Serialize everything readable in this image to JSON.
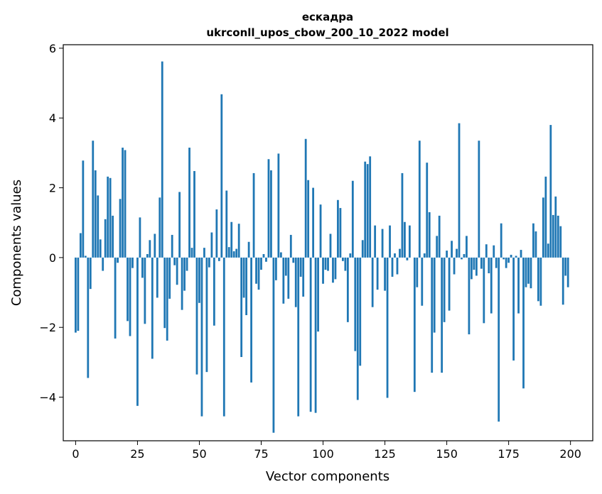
{
  "chart_data": {
    "type": "bar",
    "title_line1": "ескадра",
    "title_line2": "ukrconll_upos_cbow_200_10_2022 model",
    "xlabel": "Vector components",
    "ylabel": "Components values",
    "bar_color": "#1f77b4",
    "xlim": [
      -5,
      209
    ],
    "ylim": [
      -5.25,
      6.1
    ],
    "xticks": [
      0,
      25,
      50,
      75,
      100,
      125,
      150,
      175,
      200
    ],
    "xtick_labels": [
      "0",
      "25",
      "50",
      "75",
      "100",
      "125",
      "150",
      "175",
      "200"
    ],
    "yticks": [
      -4,
      -2,
      0,
      2,
      4,
      6
    ],
    "ytick_labels": [
      "−4",
      "−2",
      "0",
      "2",
      "4",
      "6"
    ],
    "grid": false,
    "x": [
      0,
      1,
      2,
      3,
      4,
      5,
      6,
      7,
      8,
      9,
      10,
      11,
      12,
      13,
      14,
      15,
      16,
      17,
      18,
      19,
      20,
      21,
      22,
      23,
      24,
      25,
      26,
      27,
      28,
      29,
      30,
      31,
      32,
      33,
      34,
      35,
      36,
      37,
      38,
      39,
      40,
      41,
      42,
      43,
      44,
      45,
      46,
      47,
      48,
      49,
      50,
      51,
      52,
      53,
      54,
      55,
      56,
      57,
      58,
      59,
      60,
      61,
      62,
      63,
      64,
      65,
      66,
      67,
      68,
      69,
      70,
      71,
      72,
      73,
      74,
      75,
      76,
      77,
      78,
      79,
      80,
      81,
      82,
      83,
      84,
      85,
      86,
      87,
      88,
      89,
      90,
      91,
      92,
      93,
      94,
      95,
      96,
      97,
      98,
      99,
      100,
      101,
      102,
      103,
      104,
      105,
      106,
      107,
      108,
      109,
      110,
      111,
      112,
      113,
      114,
      115,
      116,
      117,
      118,
      119,
      120,
      121,
      122,
      123,
      124,
      125,
      126,
      127,
      128,
      129,
      130,
      131,
      132,
      133,
      134,
      135,
      136,
      137,
      138,
      139,
      140,
      141,
      142,
      143,
      144,
      145,
      146,
      147,
      148,
      149,
      150,
      151,
      152,
      153,
      154,
      155,
      156,
      157,
      158,
      159,
      160,
      161,
      162,
      163,
      164,
      165,
      166,
      167,
      168,
      169,
      170,
      171,
      172,
      173,
      174,
      175,
      176,
      177,
      178,
      179,
      180,
      181,
      182,
      183,
      184,
      185,
      186,
      187,
      188,
      189,
      190,
      191,
      192,
      193,
      194,
      195,
      196,
      197,
      198,
      199
    ],
    "values": [
      -2.15,
      -2.1,
      0.7,
      2.78,
      0.05,
      -3.45,
      -0.9,
      3.35,
      2.5,
      1.78,
      0.52,
      -0.38,
      1.1,
      2.32,
      2.28,
      1.2,
      -2.32,
      -0.15,
      1.68,
      3.15,
      3.08,
      -1.82,
      -2.25,
      -0.3,
      0.0,
      -4.25,
      1.15,
      -0.58,
      -1.9,
      0.1,
      0.5,
      -2.9,
      0.68,
      -1.15,
      1.72,
      5.62,
      -2.02,
      -2.38,
      -1.18,
      0.65,
      -0.22,
      -0.78,
      1.88,
      -1.5,
      -0.95,
      -0.38,
      3.15,
      0.28,
      2.48,
      -3.35,
      -1.3,
      -4.55,
      0.28,
      -3.28,
      -0.28,
      0.72,
      -1.95,
      1.38,
      -0.1,
      4.68,
      -4.55,
      1.92,
      0.3,
      1.02,
      0.18,
      0.25,
      0.97,
      -2.85,
      -1.15,
      -1.65,
      0.45,
      -3.58,
      2.42,
      -0.75,
      -0.92,
      -0.35,
      0.1,
      -0.12,
      2.82,
      2.5,
      -5.02,
      -0.65,
      2.98,
      0.15,
      -1.32,
      -0.52,
      -1.18,
      0.65,
      -0.15,
      -1.42,
      -4.55,
      -0.55,
      -1.12,
      3.4,
      2.22,
      -4.42,
      2.0,
      -4.45,
      -2.12,
      1.52,
      -0.75,
      -0.35,
      -0.38,
      0.68,
      -0.72,
      -0.62,
      1.65,
      1.42,
      -0.1,
      -0.38,
      -1.85,
      0.12,
      2.2,
      -2.68,
      -4.08,
      -3.1,
      0.5,
      2.75,
      2.68,
      2.9,
      -1.42,
      0.92,
      -0.92,
      0.0,
      0.82,
      -0.95,
      -4.02,
      0.92,
      -0.55,
      0.12,
      -0.48,
      0.25,
      2.42,
      1.02,
      -0.08,
      0.92,
      0.0,
      -3.85,
      -0.85,
      3.35,
      -1.38,
      0.12,
      2.72,
      1.3,
      -3.3,
      -2.15,
      0.62,
      1.2,
      -3.3,
      -1.85,
      0.2,
      -1.52,
      0.48,
      -0.48,
      0.25,
      3.85,
      -0.05,
      0.1,
      0.62,
      -2.2,
      -0.62,
      -0.35,
      -0.52,
      3.35,
      -0.32,
      -1.88,
      0.38,
      -0.45,
      -1.6,
      0.35,
      -0.3,
      -4.7,
      0.98,
      -0.05,
      -0.3,
      -0.15,
      0.08,
      -2.95,
      0.05,
      -1.6,
      0.22,
      -3.75,
      -0.85,
      -0.75,
      -0.88,
      0.98,
      0.75,
      -1.25,
      -1.38,
      1.72,
      2.32,
      0.4,
      3.8,
      1.22,
      1.75,
      1.2,
      0.9,
      -1.35,
      -0.52,
      -0.85
    ]
  }
}
